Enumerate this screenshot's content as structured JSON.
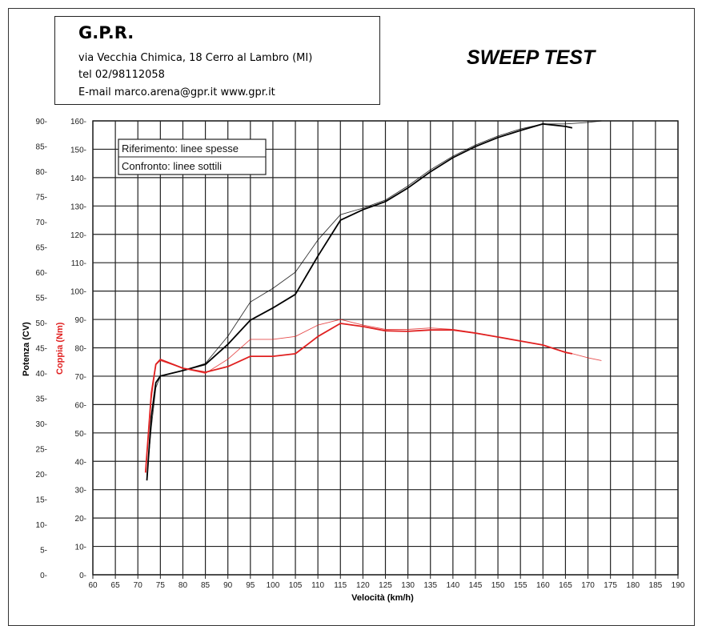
{
  "header": {
    "company": "G.P.R.",
    "address": "via Vecchia Chimica, 18 Cerro al Lambro (MI)",
    "phone": "tel 02/98112058",
    "email": "E-mail marco.arena@gpr.it  www.gpr.it"
  },
  "title": "SWEEP TEST",
  "chart_data": {
    "type": "line",
    "title": "SWEEP TEST",
    "xlabel": "Velocità (km/h)",
    "ylabel_left": "Potenza (CV)",
    "ylabel_right": "Coppia (Nm)",
    "xlim": [
      60,
      190
    ],
    "xticks": [
      60,
      65,
      70,
      75,
      80,
      85,
      90,
      95,
      100,
      105,
      110,
      115,
      120,
      125,
      130,
      135,
      140,
      145,
      150,
      155,
      160,
      165,
      170,
      175,
      180,
      185,
      190
    ],
    "ylim_power": [
      0,
      90
    ],
    "yticks_power": [
      0,
      5,
      10,
      15,
      20,
      25,
      30,
      35,
      40,
      45,
      50,
      55,
      60,
      65,
      70,
      75,
      80,
      85,
      90
    ],
    "ylim_torque": [
      0,
      160
    ],
    "yticks_torque": [
      0,
      10,
      20,
      30,
      40,
      50,
      60,
      70,
      80,
      90,
      100,
      110,
      120,
      130,
      140,
      150,
      160
    ],
    "grid": true,
    "legend": {
      "lines": [
        "Riferimento: linee spesse",
        "Confronto: linee sottili"
      ],
      "placement": "top-left"
    },
    "colors": {
      "power": "#000000",
      "torque": "#e02020"
    },
    "series": [
      {
        "quantity": "power",
        "style": "thick",
        "x": [
          72,
          73,
          74,
          75,
          80,
          85,
          90,
          95,
          100,
          105,
          110,
          115,
          120,
          125,
          130,
          135,
          140,
          145,
          150,
          155,
          160,
          165,
          166.5
        ],
        "y": [
          18.7,
          31.4,
          38.1,
          39.4,
          40.5,
          41.7,
          45.7,
          50.5,
          52.9,
          55.6,
          63.2,
          70.3,
          72.4,
          74,
          76.7,
          79.9,
          82.7,
          84.9,
          86.7,
          88.1,
          89.4,
          88.9,
          88.6
        ]
      },
      {
        "quantity": "power",
        "style": "thin",
        "x": [
          72,
          73,
          74,
          75,
          80,
          85,
          90,
          95,
          100,
          105,
          110,
          115,
          120,
          125,
          130,
          135,
          140,
          145,
          150,
          155,
          160,
          165,
          170,
          173
        ],
        "y": [
          19.7,
          29.3,
          37.1,
          39.4,
          40.5,
          41.9,
          47.3,
          54.1,
          56.8,
          60,
          66.4,
          71.4,
          72.7,
          74.3,
          77.1,
          80.3,
          83,
          85.2,
          87,
          88.4,
          89.4,
          89.4,
          89.7,
          90
        ]
      },
      {
        "quantity": "torque",
        "style": "thick",
        "x": [
          71.7,
          73,
          74,
          75,
          80,
          85,
          90,
          95,
          100,
          105,
          110,
          115,
          120,
          125,
          130,
          135,
          140,
          145,
          150,
          155,
          160,
          165,
          166.5
        ],
        "y": [
          36,
          64,
          74.2,
          75.9,
          72.8,
          71.4,
          73.4,
          77,
          77,
          77.9,
          84,
          88.6,
          87.5,
          86,
          85.8,
          86.3,
          86.3,
          85.2,
          83.8,
          82.4,
          81,
          78.4,
          77.9
        ]
      },
      {
        "quantity": "torque",
        "style": "thin",
        "x": [
          71.7,
          73,
          74,
          75,
          80,
          85,
          90,
          95,
          100,
          105,
          110,
          115,
          120,
          125,
          130,
          135,
          140,
          145,
          150,
          155,
          160,
          165,
          170,
          173
        ],
        "y": [
          37,
          62,
          74,
          75.5,
          72.8,
          71,
          76,
          83,
          83,
          84,
          88,
          90,
          88,
          86.5,
          86.5,
          87,
          86.5,
          85.3,
          83.8,
          82.4,
          81,
          78.6,
          76.5,
          75.5
        ]
      }
    ]
  }
}
